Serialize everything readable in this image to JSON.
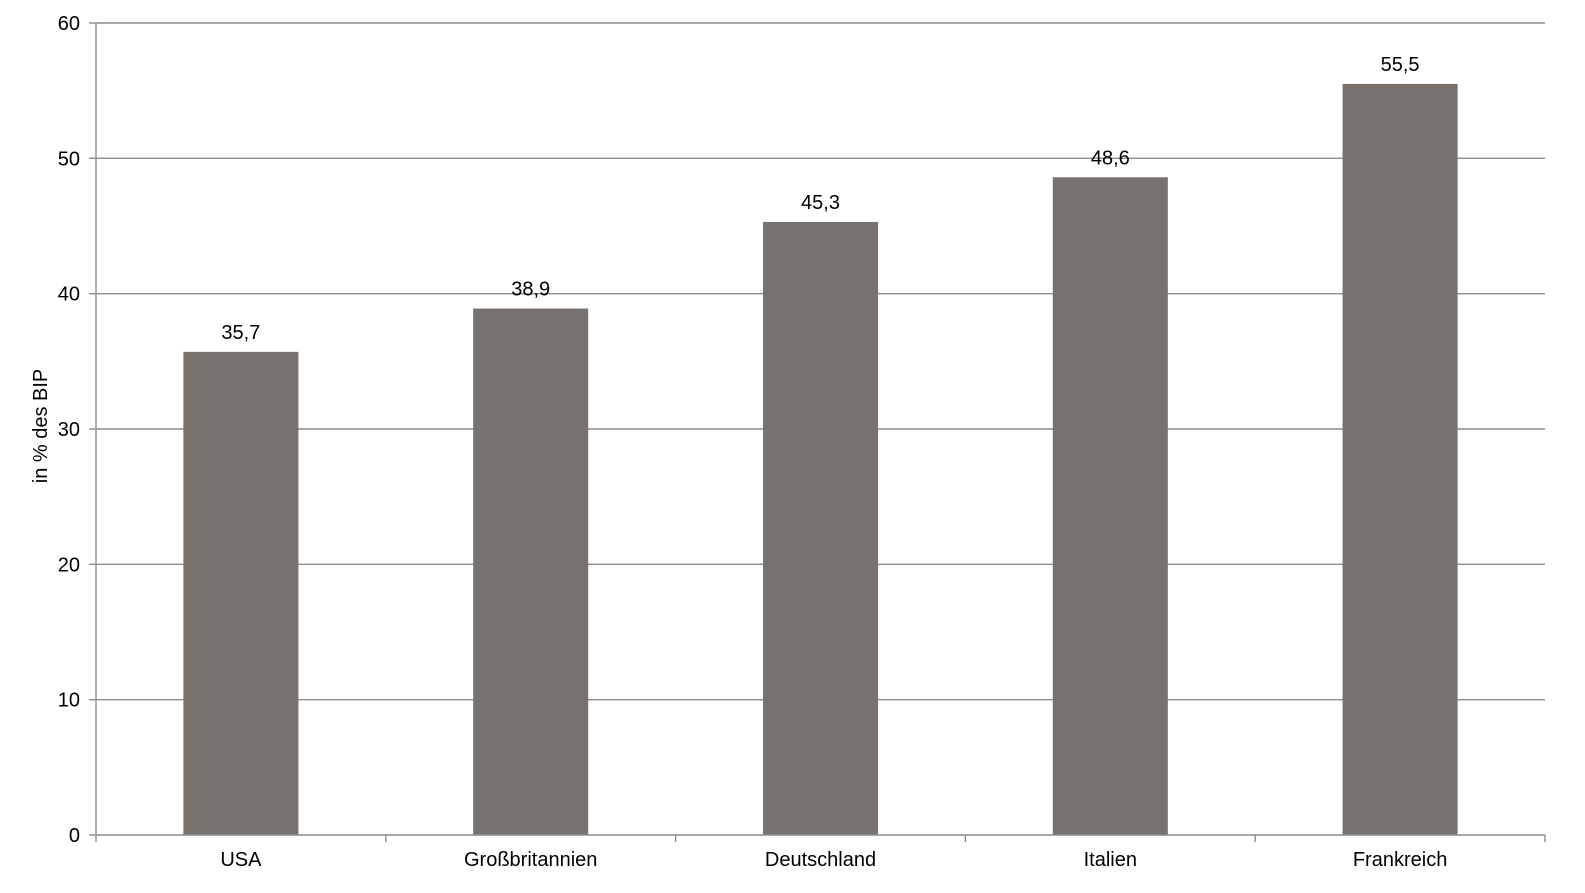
{
  "chart_data": {
    "type": "bar",
    "categories": [
      "USA",
      "Großbritannien",
      "Deutschland",
      "Italien",
      "Frankreich"
    ],
    "values": [
      35.7,
      38.9,
      45.3,
      48.6,
      55.5
    ],
    "value_labels": [
      "35,7",
      "38,9",
      "45,3",
      "48,6",
      "55,5"
    ],
    "ylabel": "in % des BIP",
    "ylim": [
      0,
      60
    ],
    "yticks": [
      0,
      10,
      20,
      30,
      40,
      50,
      60
    ],
    "grid": true,
    "legend": "none",
    "colors": {
      "bar": "#77726e",
      "grid": "#8c8c8c"
    }
  }
}
